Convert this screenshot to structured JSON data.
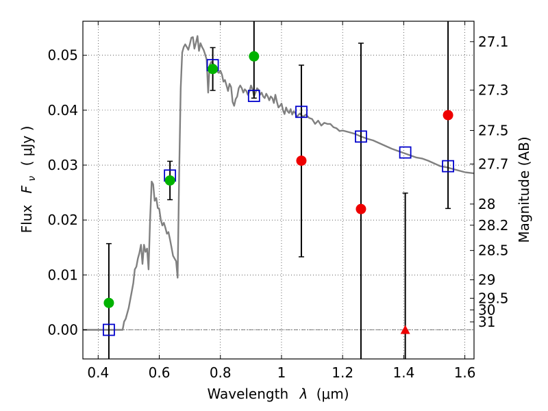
{
  "chart_data": {
    "type": "scatter",
    "title": "",
    "xlabel": "Wavelength",
    "xlabel_symbol": "λ",
    "xlabel_unit": "(μm)",
    "ylabel": "Flux",
    "ylabel_symbol": "F",
    "ylabel_symbol_sub": "ν",
    "ylabel_unit": "( μJy )",
    "y2label": "Magnitude (AB)",
    "xlim": [
      0.35,
      1.63
    ],
    "ylim": [
      -0.0053,
      0.0562
    ],
    "grid": true,
    "grid_style": "dotted",
    "x_ticks": [
      {
        "value": 0.4,
        "label": "0.4"
      },
      {
        "value": 0.6,
        "label": "0.6"
      },
      {
        "value": 0.8,
        "label": "0.8"
      },
      {
        "value": 1.0,
        "label": "1"
      },
      {
        "value": 1.2,
        "label": "1.2"
      },
      {
        "value": 1.4,
        "label": "1.4"
      },
      {
        "value": 1.6,
        "label": "1.6"
      }
    ],
    "y_ticks": [
      {
        "value": 0.0,
        "label": "0.00"
      },
      {
        "value": 0.01,
        "label": "0.01"
      },
      {
        "value": 0.02,
        "label": "0.02"
      },
      {
        "value": 0.03,
        "label": "0.03"
      },
      {
        "value": 0.04,
        "label": "0.04"
      },
      {
        "value": 0.05,
        "label": "0.05"
      }
    ],
    "y2_ticks": [
      {
        "value": 27.1,
        "label": "27.1"
      },
      {
        "value": 27.3,
        "label": "27.3"
      },
      {
        "value": 27.5,
        "label": "27.5"
      },
      {
        "value": 27.7,
        "label": "27.7"
      },
      {
        "value": 28,
        "label": "28"
      },
      {
        "value": 28.2,
        "label": "28.2"
      },
      {
        "value": 28.5,
        "label": "28.5"
      },
      {
        "value": 29,
        "label": "29"
      },
      {
        "value": 29.5,
        "label": "29.5"
      },
      {
        "value": 30,
        "label": "30"
      },
      {
        "value": 31,
        "label": "31"
      }
    ],
    "sed_model": {
      "color": "#808080",
      "points": [
        [
          0.35,
          0.0
        ],
        [
          0.48,
          0.0
        ],
        [
          0.485,
          0.0015
        ],
        [
          0.49,
          0.002
        ],
        [
          0.5,
          0.004
        ],
        [
          0.51,
          0.007
        ],
        [
          0.515,
          0.0085
        ],
        [
          0.52,
          0.011
        ],
        [
          0.525,
          0.0115
        ],
        [
          0.53,
          0.013
        ],
        [
          0.535,
          0.014
        ],
        [
          0.54,
          0.0155
        ],
        [
          0.545,
          0.012
        ],
        [
          0.55,
          0.0155
        ],
        [
          0.555,
          0.0142
        ],
        [
          0.56,
          0.0148
        ],
        [
          0.565,
          0.011
        ],
        [
          0.57,
          0.02
        ],
        [
          0.575,
          0.027
        ],
        [
          0.58,
          0.0265
        ],
        [
          0.585,
          0.0235
        ],
        [
          0.59,
          0.024
        ],
        [
          0.595,
          0.0222
        ],
        [
          0.6,
          0.022
        ],
        [
          0.605,
          0.02
        ],
        [
          0.61,
          0.019
        ],
        [
          0.615,
          0.0195
        ],
        [
          0.62,
          0.0186
        ],
        [
          0.625,
          0.0175
        ],
        [
          0.63,
          0.0178
        ],
        [
          0.635,
          0.0165
        ],
        [
          0.64,
          0.015
        ],
        [
          0.645,
          0.0135
        ],
        [
          0.65,
          0.013
        ],
        [
          0.655,
          0.0125
        ],
        [
          0.66,
          0.0095
        ],
        [
          0.665,
          0.028
        ],
        [
          0.67,
          0.044
        ],
        [
          0.675,
          0.0505
        ],
        [
          0.68,
          0.0515
        ],
        [
          0.685,
          0.052
        ],
        [
          0.69,
          0.0515
        ],
        [
          0.695,
          0.051
        ],
        [
          0.7,
          0.052
        ],
        [
          0.705,
          0.0532
        ],
        [
          0.71,
          0.0533
        ],
        [
          0.715,
          0.0512
        ],
        [
          0.72,
          0.0523
        ],
        [
          0.725,
          0.0535
        ],
        [
          0.73,
          0.0508
        ],
        [
          0.735,
          0.0522
        ],
        [
          0.74,
          0.0515
        ],
        [
          0.745,
          0.051
        ],
        [
          0.75,
          0.0502
        ],
        [
          0.755,
          0.0492
        ],
        [
          0.76,
          0.0432
        ],
        [
          0.765,
          0.0482
        ],
        [
          0.77,
          0.0488
        ],
        [
          0.775,
          0.0485
        ],
        [
          0.78,
          0.0482
        ],
        [
          0.785,
          0.0476
        ],
        [
          0.79,
          0.047
        ],
        [
          0.795,
          0.0468
        ],
        [
          0.8,
          0.0472
        ],
        [
          0.805,
          0.0465
        ],
        [
          0.81,
          0.0452
        ],
        [
          0.815,
          0.0455
        ],
        [
          0.82,
          0.0445
        ],
        [
          0.825,
          0.0435
        ],
        [
          0.83,
          0.0448
        ],
        [
          0.835,
          0.0442
        ],
        [
          0.84,
          0.0415
        ],
        [
          0.845,
          0.0408
        ],
        [
          0.85,
          0.042
        ],
        [
          0.855,
          0.0425
        ],
        [
          0.86,
          0.044
        ],
        [
          0.865,
          0.0445
        ],
        [
          0.87,
          0.044
        ],
        [
          0.875,
          0.0432
        ],
        [
          0.88,
          0.0438
        ],
        [
          0.885,
          0.0435
        ],
        [
          0.89,
          0.0428
        ],
        [
          0.895,
          0.0434
        ],
        [
          0.9,
          0.0445
        ],
        [
          0.905,
          0.0438
        ],
        [
          0.91,
          0.0425
        ],
        [
          0.915,
          0.0432
        ],
        [
          0.92,
          0.044
        ],
        [
          0.925,
          0.0437
        ],
        [
          0.93,
          0.0428
        ],
        [
          0.935,
          0.0432
        ],
        [
          0.94,
          0.0425
        ],
        [
          0.945,
          0.0422
        ],
        [
          0.95,
          0.043
        ],
        [
          0.955,
          0.0425
        ],
        [
          0.96,
          0.0418
        ],
        [
          0.965,
          0.0425
        ],
        [
          0.97,
          0.0422
        ],
        [
          0.975,
          0.0413
        ],
        [
          0.98,
          0.0428
        ],
        [
          0.985,
          0.0415
        ],
        [
          0.99,
          0.0405
        ],
        [
          0.995,
          0.0408
        ],
        [
          1.0,
          0.0412
        ],
        [
          1.005,
          0.04
        ],
        [
          1.01,
          0.0393
        ],
        [
          1.015,
          0.0405
        ],
        [
          1.02,
          0.0398
        ],
        [
          1.025,
          0.0395
        ],
        [
          1.03,
          0.0402
        ],
        [
          1.035,
          0.0392
        ],
        [
          1.04,
          0.0398
        ],
        [
          1.045,
          0.0395
        ],
        [
          1.05,
          0.0388
        ],
        [
          1.06,
          0.0394
        ],
        [
          1.07,
          0.0388
        ],
        [
          1.08,
          0.0392
        ],
        [
          1.09,
          0.0386
        ],
        [
          1.1,
          0.0384
        ],
        [
          1.11,
          0.0375
        ],
        [
          1.12,
          0.0381
        ],
        [
          1.13,
          0.0372
        ],
        [
          1.14,
          0.0377
        ],
        [
          1.15,
          0.0375
        ],
        [
          1.16,
          0.0375
        ],
        [
          1.17,
          0.0369
        ],
        [
          1.18,
          0.0367
        ],
        [
          1.19,
          0.0362
        ],
        [
          1.2,
          0.0363
        ],
        [
          1.22,
          0.036
        ],
        [
          1.24,
          0.0357
        ],
        [
          1.26,
          0.0352
        ],
        [
          1.28,
          0.0348
        ],
        [
          1.3,
          0.0345
        ],
        [
          1.32,
          0.034
        ],
        [
          1.34,
          0.0335
        ],
        [
          1.36,
          0.033
        ],
        [
          1.38,
          0.0326
        ],
        [
          1.4,
          0.0322
        ],
        [
          1.42,
          0.0318
        ],
        [
          1.44,
          0.0314
        ],
        [
          1.46,
          0.0312
        ],
        [
          1.48,
          0.0308
        ],
        [
          1.5,
          0.0303
        ],
        [
          1.52,
          0.0298
        ],
        [
          1.54,
          0.0296
        ],
        [
          1.56,
          0.0293
        ],
        [
          1.58,
          0.029
        ],
        [
          1.6,
          0.0287
        ],
        [
          1.63,
          0.0285
        ]
      ]
    },
    "model_photometry": {
      "marker": "open-square",
      "color": "#0000cc",
      "points": [
        {
          "x": 0.435,
          "y": 0.0
        },
        {
          "x": 0.635,
          "y": 0.0281
        },
        {
          "x": 0.775,
          "y": 0.0482
        },
        {
          "x": 0.91,
          "y": 0.0426
        },
        {
          "x": 1.065,
          "y": 0.0397
        },
        {
          "x": 1.26,
          "y": 0.0352
        },
        {
          "x": 1.405,
          "y": 0.0323
        },
        {
          "x": 1.545,
          "y": 0.0298
        }
      ]
    },
    "detections": {
      "marker": "circle",
      "color": "#00b200",
      "points": [
        {
          "x": 0.435,
          "y": 0.0049,
          "yerr_low": -0.0053,
          "yerr_high": 0.0157
        },
        {
          "x": 0.635,
          "y": 0.0272,
          "yerr_low": 0.0237,
          "yerr_high": 0.0307
        },
        {
          "x": 0.775,
          "y": 0.0475,
          "yerr_low": 0.0436,
          "yerr_high": 0.0514
        },
        {
          "x": 0.91,
          "y": 0.0498,
          "yerr_low": 0.0422,
          "yerr_high": 0.0562
        }
      ]
    },
    "non_detections": {
      "marker": "circle",
      "color": "#ee0000",
      "points": [
        {
          "x": 1.065,
          "y": 0.0308,
          "yerr_low": 0.0133,
          "yerr_high": 0.0482
        },
        {
          "x": 1.26,
          "y": 0.022,
          "yerr_low": -0.0053,
          "yerr_high": 0.0522
        },
        {
          "x": 1.545,
          "y": 0.0391,
          "yerr_low": 0.0221,
          "yerr_high": 0.0562
        }
      ]
    },
    "upper_limit": {
      "marker": "triangle",
      "color": "#ee0000",
      "points": [
        {
          "x": 1.405,
          "y": 0.0,
          "yerr_low": -0.0053,
          "yerr_high": 0.0249
        }
      ]
    }
  }
}
